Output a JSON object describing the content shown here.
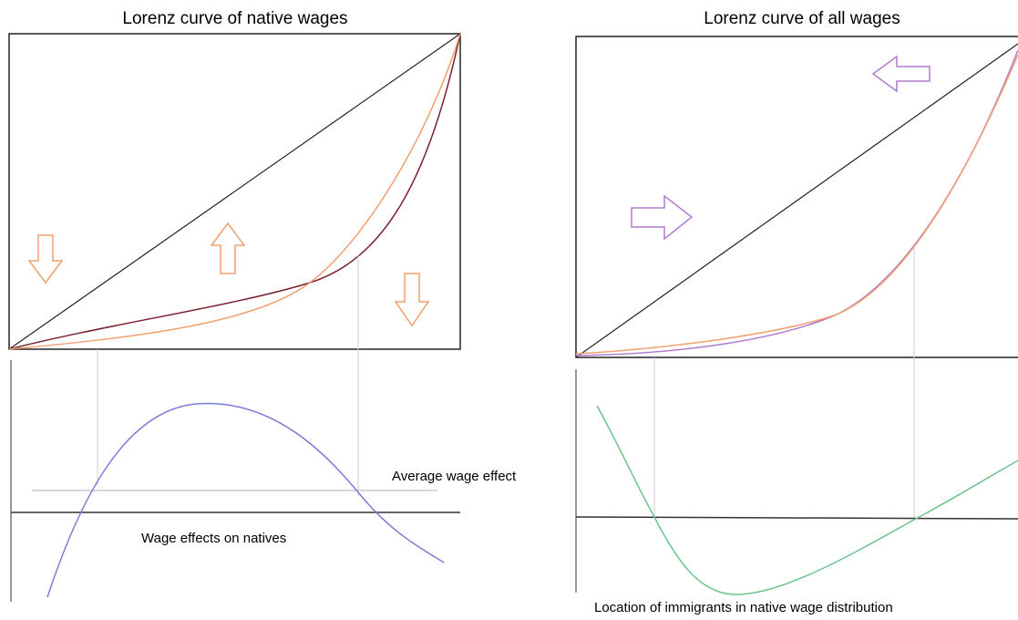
{
  "panels": [
    {
      "title": "Lorenz curve of native wages",
      "annotations": [
        "Average wage effect",
        "Wage effects on natives"
      ]
    },
    {
      "title": "Lorenz curve of all wages",
      "annotations": [
        "Location of immigrants in native wage distribution"
      ]
    }
  ]
}
